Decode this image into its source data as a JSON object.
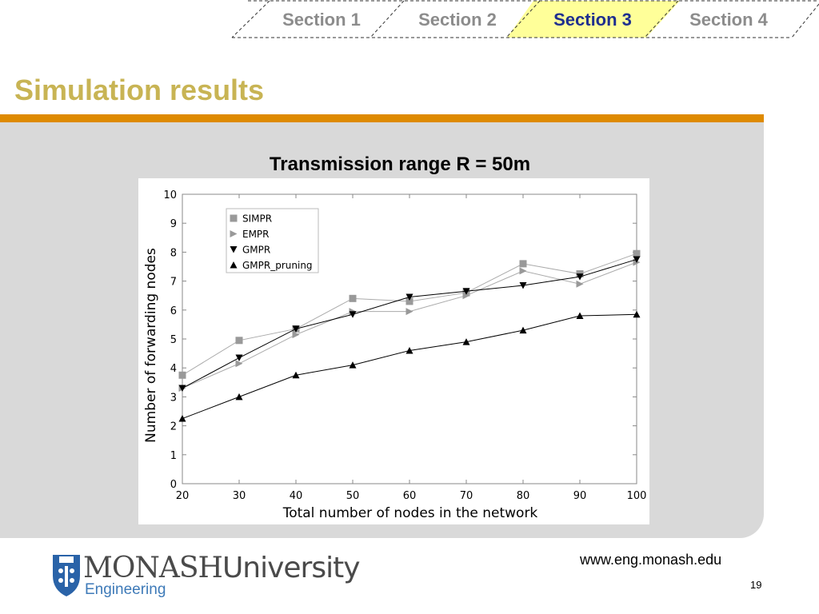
{
  "nav": {
    "tabs": [
      {
        "label": "Section 1",
        "active": false
      },
      {
        "label": "Section 2",
        "active": false
      },
      {
        "label": "Section 3",
        "active": true
      },
      {
        "label": "Section 4",
        "active": false
      }
    ],
    "active_fill": "#ffff99",
    "active_text_color": "#1f2f8f",
    "inactive_text_color": "#8c8c8c"
  },
  "slide": {
    "title": "Simulation results",
    "title_color": "#c8b454",
    "rule_color": "#de8a00",
    "panel_color": "#d9d9d9",
    "chart_heading": "Transmission range R = 50m"
  },
  "chart_data": {
    "type": "line",
    "title": "",
    "xlabel": "Total number of nodes in the network",
    "ylabel": "Number of forwarding nodes",
    "x": [
      20,
      30,
      40,
      50,
      60,
      70,
      80,
      90,
      100
    ],
    "xlim": [
      20,
      100
    ],
    "ylim": [
      0,
      10
    ],
    "xticks": [
      "20",
      "30",
      "40",
      "50",
      "60",
      "70",
      "80",
      "90",
      "100"
    ],
    "yticks": [
      "0",
      "1",
      "2",
      "3",
      "4",
      "5",
      "6",
      "7",
      "8",
      "9",
      "10"
    ],
    "grid": false,
    "legend_position": "top-left",
    "series": [
      {
        "name": "SIMPR",
        "marker": "square",
        "color": "#999999",
        "values": [
          3.75,
          4.95,
          5.35,
          6.4,
          6.3,
          6.6,
          7.6,
          7.25,
          7.95
        ]
      },
      {
        "name": "EMPR",
        "marker": "triangle-right",
        "color": "#999999",
        "values": [
          3.3,
          4.15,
          5.15,
          5.95,
          5.95,
          6.5,
          7.35,
          6.9,
          7.65
        ]
      },
      {
        "name": "GMPR",
        "marker": "triangle-down",
        "color": "#000000",
        "values": [
          3.3,
          4.35,
          5.35,
          5.85,
          6.45,
          6.65,
          6.85,
          7.15,
          7.75
        ]
      },
      {
        "name": "GMPR_pruning",
        "marker": "triangle-up",
        "color": "#000000",
        "values": [
          2.25,
          3.0,
          3.75,
          4.1,
          4.6,
          4.9,
          5.3,
          5.8,
          5.85
        ]
      }
    ]
  },
  "footer": {
    "brand_name": "MONASH",
    "brand_suffix": "University",
    "faculty": "Engineering",
    "url": "www.eng.monash.edu",
    "page_number": "19"
  }
}
